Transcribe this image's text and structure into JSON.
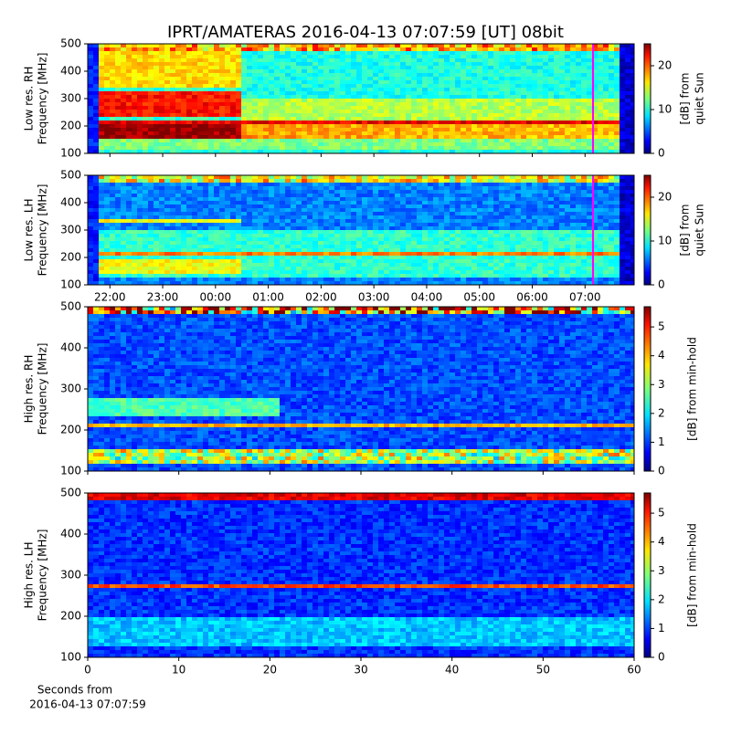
{
  "chart_data": [
    {
      "type": "spectrogram",
      "title": "IPRT/AMATERAS 2016-04-13 07:07:59 [UT]   08bit",
      "ylabel": [
        "Low res. RH",
        "Frequency [MHz]"
      ],
      "ylim": [
        100,
        500
      ],
      "yticks": [
        100,
        200,
        300,
        400,
        500
      ],
      "xlim": [
        21.58,
        31.93
      ],
      "colorbar": {
        "label": [
          "[dB] from",
          "quiet Sun"
        ],
        "lim": [
          0,
          25
        ],
        "ticks": [
          0,
          10,
          20
        ]
      }
    },
    {
      "type": "spectrogram",
      "ylabel": [
        "Low res. LH",
        "Frequency [MHz]"
      ],
      "ylim": [
        100,
        500
      ],
      "yticks": [
        100,
        200,
        300,
        400,
        500
      ],
      "xlim": [
        21.58,
        31.93
      ],
      "xticks": [
        {
          "value": 22,
          "label": "22:00"
        },
        {
          "value": 23,
          "label": "23:00"
        },
        {
          "value": 24,
          "label": "00:00"
        },
        {
          "value": 25,
          "label": "01:00"
        },
        {
          "value": 26,
          "label": "02:00"
        },
        {
          "value": 27,
          "label": "03:00"
        },
        {
          "value": 28,
          "label": "04:00"
        },
        {
          "value": 29,
          "label": "05:00"
        },
        {
          "value": 30,
          "label": "06:00"
        },
        {
          "value": 31,
          "label": "07:00"
        }
      ],
      "colorbar": {
        "label": [
          "[dB] from",
          "quiet Sun"
        ],
        "lim": [
          0,
          25
        ],
        "ticks": [
          0,
          10,
          20
        ]
      }
    },
    {
      "type": "spectrogram",
      "ylabel": [
        "High res. RH",
        "Frequency [MHz]"
      ],
      "ylim": [
        100,
        500
      ],
      "yticks": [
        100,
        200,
        300,
        400,
        500
      ],
      "xlim": [
        0,
        60
      ],
      "colorbar": {
        "label": [
          "[dB] from min-hold"
        ],
        "lim": [
          0,
          5.7
        ],
        "ticks": [
          0,
          1,
          2,
          3,
          4,
          5
        ]
      }
    },
    {
      "type": "spectrogram",
      "ylabel": [
        "High res. LH",
        "Frequency [MHz]"
      ],
      "ylim": [
        100,
        500
      ],
      "yticks": [
        100,
        200,
        300,
        400,
        500
      ],
      "xlim": [
        0,
        60
      ],
      "xticks": [
        0,
        10,
        20,
        30,
        40,
        50,
        60
      ],
      "xlabel": [
        "Seconds from",
        "2016-04-13 07:07:59"
      ],
      "colorbar": {
        "label": [
          "[dB] from min-hold"
        ],
        "lim": [
          0,
          5.7
        ],
        "ticks": [
          0,
          1,
          2,
          3,
          4,
          5
        ]
      }
    }
  ]
}
